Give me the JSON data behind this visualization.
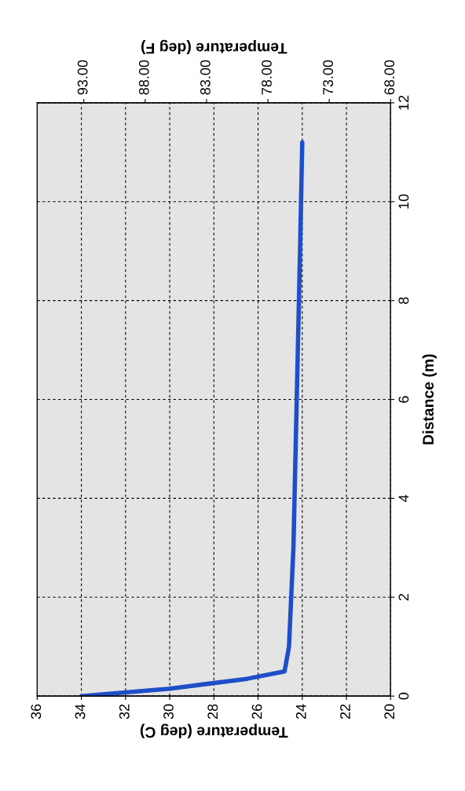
{
  "chart_data": {
    "type": "line",
    "xlabel": "Temperature (deg C)",
    "x2label": "Temperature (deg F)",
    "ylabel": "Distance (m)",
    "x": [
      34.0,
      30.0,
      26.5,
      24.8,
      24.6,
      24.5,
      24.4,
      24.3,
      24.2,
      24.1,
      24.0
    ],
    "series": [
      {
        "color": "#1f4fc8",
        "values": [
          0,
          0.15,
          0.35,
          0.5,
          1,
          2,
          3,
          5,
          7,
          9,
          11.2
        ]
      }
    ],
    "xlim": [
      36,
      20
    ],
    "xticks": [
      36,
      34,
      32,
      30,
      28,
      26,
      24,
      22,
      20
    ],
    "x2lim": [
      96.8,
      68
    ],
    "x2ticks": [
      {
        "value": 93,
        "label": "93.00"
      },
      {
        "value": 88,
        "label": "88.00"
      },
      {
        "value": 83,
        "label": "83.00"
      },
      {
        "value": 78,
        "label": "78.00"
      },
      {
        "value": 73,
        "label": "73.00"
      },
      {
        "value": 68,
        "label": "68.00"
      }
    ],
    "ylim": [
      0,
      12
    ],
    "yticks": [
      0,
      2,
      4,
      6,
      8,
      10,
      12
    ],
    "grid": true,
    "line_style": "solid",
    "marker": "none"
  }
}
